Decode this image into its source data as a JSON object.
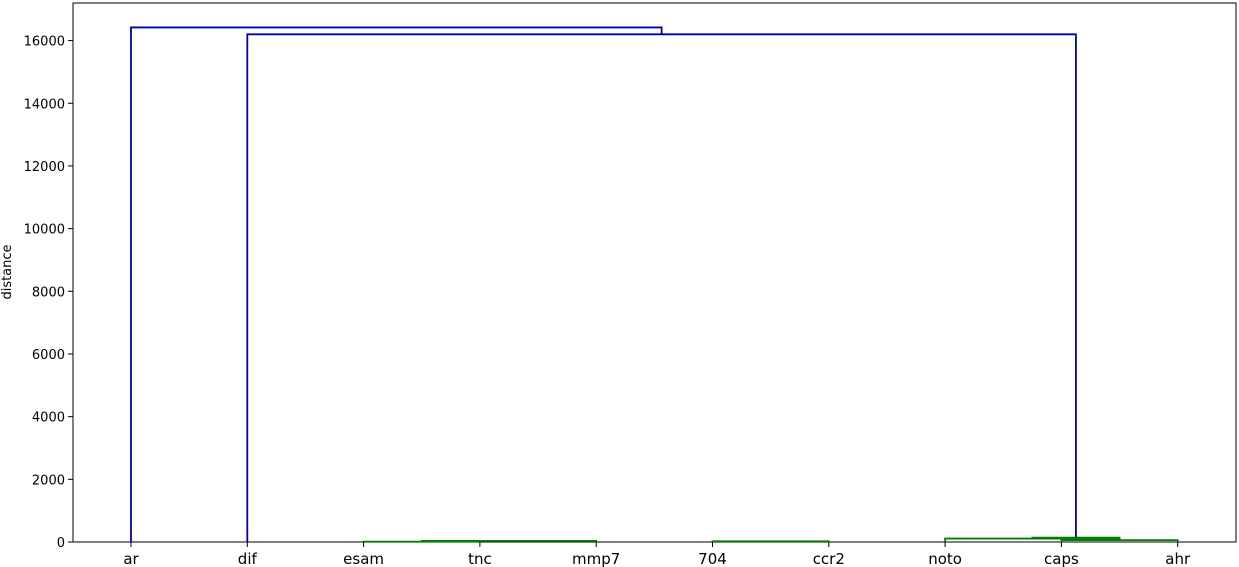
{
  "chart_data": {
    "type": "dendrogram",
    "title": "",
    "xlabel": "",
    "ylabel": "distance",
    "ylim": [
      0,
      17200
    ],
    "yticks": [
      0,
      2000,
      4000,
      6000,
      8000,
      10000,
      12000,
      14000,
      16000
    ],
    "grid": false,
    "legend": "none",
    "leaves": [
      "ar",
      "dif",
      "esam",
      "tnc",
      "mmp7",
      "704",
      "ccr2",
      "noto",
      "caps",
      "ahr"
    ],
    "colors": {
      "upper": "#0000b2",
      "cluster": "#007f00"
    },
    "merges": [
      {
        "left": "esam",
        "right": "tnc",
        "height": 10,
        "color": "#007f00"
      },
      {
        "left": "704",
        "right": "ccr2",
        "height": 25,
        "color": "#007f00"
      },
      {
        "left": "esam+tnc",
        "right": "mmp7",
        "height": 35,
        "color": "#007f00"
      },
      {
        "left": "caps",
        "right": "ahr",
        "height": 60,
        "color": "#007f00"
      },
      {
        "left": "noto",
        "right": "caps+ahr",
        "height": 110,
        "color": "#007f00"
      },
      {
        "left": "esam+tnc+mmp7+704+ccr2",
        "right": "noto+caps+ahr",
        "height": 140,
        "color": "#007f00"
      },
      {
        "left": "dif",
        "right": "esam…ahr",
        "height": 16200,
        "color": "#0000b2"
      },
      {
        "left": "ar",
        "right": "dif…ahr",
        "height": 16420,
        "color": "#0000b2"
      }
    ]
  }
}
